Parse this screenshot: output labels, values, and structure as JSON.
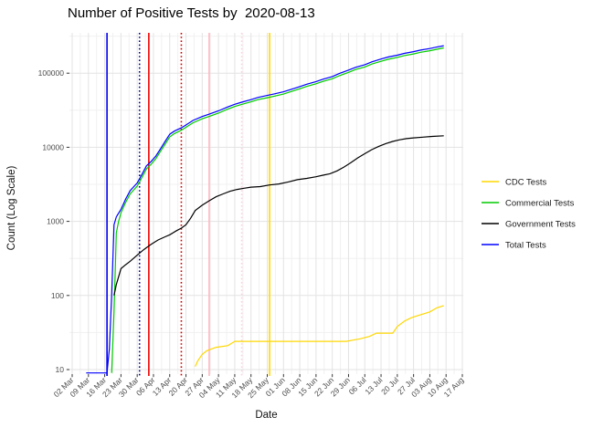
{
  "chart_data": {
    "type": "line",
    "title": "Number of Positive Tests by  2020-08-13",
    "xlabel": "Date",
    "ylabel": "Count (Log Scale)",
    "y_scale": "log10",
    "grid": "on",
    "legend_position": "right",
    "ylim": [
      9,
      350000
    ],
    "xlim": [
      "2020-03-01",
      "2020-08-18"
    ],
    "y_ticks": [
      {
        "value": 10,
        "label": "10"
      },
      {
        "value": 100,
        "label": "100"
      },
      {
        "value": 1000,
        "label": "1000"
      },
      {
        "value": 10000,
        "label": "10000"
      },
      {
        "value": 100000,
        "label": "100000"
      }
    ],
    "x_ticks": [
      {
        "date": "2020-03-02",
        "label": "02 Mar"
      },
      {
        "date": "2020-03-09",
        "label": "09 Mar"
      },
      {
        "date": "2020-03-16",
        "label": "16 Mar"
      },
      {
        "date": "2020-03-23",
        "label": "23 Mar"
      },
      {
        "date": "2020-03-30",
        "label": "30 Mar"
      },
      {
        "date": "2020-04-06",
        "label": "06 Apr"
      },
      {
        "date": "2020-04-13",
        "label": "13 Apr"
      },
      {
        "date": "2020-04-20",
        "label": "20 Apr"
      },
      {
        "date": "2020-04-27",
        "label": "27 Apr"
      },
      {
        "date": "2020-05-04",
        "label": "04 May"
      },
      {
        "date": "2020-05-11",
        "label": "11 May"
      },
      {
        "date": "2020-05-18",
        "label": "18 May"
      },
      {
        "date": "2020-05-25",
        "label": "25 May"
      },
      {
        "date": "2020-06-01",
        "label": "01 Jun"
      },
      {
        "date": "2020-06-08",
        "label": "08 Jun"
      },
      {
        "date": "2020-06-15",
        "label": "15 Jun"
      },
      {
        "date": "2020-06-22",
        "label": "22 Jun"
      },
      {
        "date": "2020-06-29",
        "label": "29 Jun"
      },
      {
        "date": "2020-07-06",
        "label": "06 Jul"
      },
      {
        "date": "2020-07-13",
        "label": "13 Jul"
      },
      {
        "date": "2020-07-20",
        "label": "20 Jul"
      },
      {
        "date": "2020-07-27",
        "label": "27 Jul"
      },
      {
        "date": "2020-08-03",
        "label": "03 Aug"
      },
      {
        "date": "2020-08-10",
        "label": "10 Aug"
      },
      {
        "date": "2020-08-17",
        "label": "17 Aug"
      }
    ],
    "event_vlines": [
      {
        "date": "2020-03-17",
        "color": "#0000EE",
        "style": "solid"
      },
      {
        "date": "2020-03-31",
        "color": "#00008B",
        "style": "dotted"
      },
      {
        "date": "2020-04-04",
        "color": "#EE0000",
        "style": "solid"
      },
      {
        "date": "2020-04-18",
        "color": "#CC0000",
        "style": "dotted"
      },
      {
        "date": "2020-04-30",
        "color": "#FFB6C1",
        "style": "solid"
      },
      {
        "date": "2020-05-14",
        "color": "#FFD0DA",
        "style": "dotted"
      },
      {
        "date": "2020-05-26",
        "color": "#FFD700",
        "style": "solid"
      }
    ],
    "series": [
      {
        "name": "CDC Tests",
        "color": "#FFD700",
        "points": [
          [
            "2020-04-24",
            11
          ],
          [
            "2020-04-25",
            13
          ],
          [
            "2020-04-27",
            16
          ],
          [
            "2020-04-29",
            18
          ],
          [
            "2020-05-01",
            19
          ],
          [
            "2020-05-03",
            20
          ],
          [
            "2020-05-08",
            21
          ],
          [
            "2020-05-11",
            24
          ],
          [
            "2020-06-28",
            24
          ],
          [
            "2020-07-01",
            25
          ],
          [
            "2020-07-04",
            26
          ],
          [
            "2020-07-08",
            28
          ],
          [
            "2020-07-11",
            31
          ],
          [
            "2020-07-18",
            31
          ],
          [
            "2020-07-20",
            38
          ],
          [
            "2020-07-23",
            45
          ],
          [
            "2020-07-26",
            50
          ],
          [
            "2020-07-30",
            55
          ],
          [
            "2020-08-03",
            60
          ],
          [
            "2020-08-06",
            68
          ],
          [
            "2020-08-09",
            73
          ]
        ]
      },
      {
        "name": "Commercial Tests",
        "color": "#00CC00",
        "points": [
          [
            "2020-03-19",
            9
          ],
          [
            "2020-03-20",
            60
          ],
          [
            "2020-03-21",
            700
          ],
          [
            "2020-03-22",
            1000
          ],
          [
            "2020-03-23",
            1300
          ],
          [
            "2020-03-25",
            1800
          ],
          [
            "2020-03-27",
            2350
          ],
          [
            "2020-03-30",
            3000
          ],
          [
            "2020-04-01",
            3900
          ],
          [
            "2020-04-03",
            5100
          ],
          [
            "2020-04-05",
            5900
          ],
          [
            "2020-04-07",
            7000
          ],
          [
            "2020-04-09",
            8800
          ],
          [
            "2020-04-11",
            11000
          ],
          [
            "2020-04-13",
            13800
          ],
          [
            "2020-04-15",
            15300
          ],
          [
            "2020-04-18",
            17000
          ],
          [
            "2020-04-20",
            18600
          ],
          [
            "2020-04-23",
            21400
          ],
          [
            "2020-04-27",
            24200
          ],
          [
            "2020-04-30",
            26100
          ],
          [
            "2020-05-04",
            28900
          ],
          [
            "2020-05-08",
            32700
          ],
          [
            "2020-05-11",
            35500
          ],
          [
            "2020-05-14",
            37900
          ],
          [
            "2020-05-18",
            41100
          ],
          [
            "2020-05-21",
            43900
          ],
          [
            "2020-05-25",
            46700
          ],
          [
            "2020-05-28",
            49000
          ],
          [
            "2020-06-01",
            52300
          ],
          [
            "2020-06-04",
            56000
          ],
          [
            "2020-06-08",
            61600
          ],
          [
            "2020-06-11",
            66300
          ],
          [
            "2020-06-15",
            71900
          ],
          [
            "2020-06-18",
            77500
          ],
          [
            "2020-06-22",
            84000
          ],
          [
            "2020-06-25",
            92400
          ],
          [
            "2020-06-29",
            102700
          ],
          [
            "2020-07-02",
            112000
          ],
          [
            "2020-07-06",
            121400
          ],
          [
            "2020-07-09",
            132600
          ],
          [
            "2020-07-13",
            144700
          ],
          [
            "2020-07-16",
            154100
          ],
          [
            "2020-07-20",
            163400
          ],
          [
            "2020-07-23",
            172800
          ],
          [
            "2020-07-27",
            182100
          ],
          [
            "2020-07-30",
            191500
          ],
          [
            "2020-08-03",
            200800
          ],
          [
            "2020-08-06",
            210100
          ],
          [
            "2020-08-09",
            219400
          ]
        ]
      },
      {
        "name": "Government Tests",
        "color": "#000000",
        "points": [
          [
            "2020-03-20",
            100
          ],
          [
            "2020-03-21",
            140
          ],
          [
            "2020-03-23",
            230
          ],
          [
            "2020-03-25",
            260
          ],
          [
            "2020-03-27",
            290
          ],
          [
            "2020-03-30",
            350
          ],
          [
            "2020-04-02",
            420
          ],
          [
            "2020-04-05",
            490
          ],
          [
            "2020-04-08",
            560
          ],
          [
            "2020-04-11",
            620
          ],
          [
            "2020-04-13",
            660
          ],
          [
            "2020-04-16",
            750
          ],
          [
            "2020-04-18",
            810
          ],
          [
            "2020-04-20",
            900
          ],
          [
            "2020-04-22",
            1100
          ],
          [
            "2020-04-24",
            1400
          ],
          [
            "2020-04-27",
            1650
          ],
          [
            "2020-04-30",
            1900
          ],
          [
            "2020-05-03",
            2150
          ],
          [
            "2020-05-06",
            2350
          ],
          [
            "2020-05-09",
            2550
          ],
          [
            "2020-05-12",
            2700
          ],
          [
            "2020-05-15",
            2800
          ],
          [
            "2020-05-18",
            2900
          ],
          [
            "2020-05-22",
            2950
          ],
          [
            "2020-05-26",
            3100
          ],
          [
            "2020-05-30",
            3200
          ],
          [
            "2020-06-03",
            3400
          ],
          [
            "2020-06-07",
            3650
          ],
          [
            "2020-06-11",
            3800
          ],
          [
            "2020-06-15",
            4000
          ],
          [
            "2020-06-18",
            4200
          ],
          [
            "2020-06-21",
            4400
          ],
          [
            "2020-06-24",
            4800
          ],
          [
            "2020-06-27",
            5400
          ],
          [
            "2020-06-30",
            6200
          ],
          [
            "2020-07-03",
            7200
          ],
          [
            "2020-07-06",
            8200
          ],
          [
            "2020-07-09",
            9300
          ],
          [
            "2020-07-12",
            10300
          ],
          [
            "2020-07-15",
            11200
          ],
          [
            "2020-07-18",
            12000
          ],
          [
            "2020-07-21",
            12600
          ],
          [
            "2020-07-24",
            13100
          ],
          [
            "2020-07-27",
            13400
          ],
          [
            "2020-07-31",
            13700
          ],
          [
            "2020-08-04",
            14000
          ],
          [
            "2020-08-09",
            14300
          ]
        ]
      },
      {
        "name": "Total Tests",
        "color": "#0000FF",
        "points": [
          [
            "2020-03-08",
            9
          ],
          [
            "2020-03-17",
            9
          ],
          [
            "2020-03-18",
            19
          ],
          [
            "2020-03-19",
            100
          ],
          [
            "2020-03-20",
            900
          ],
          [
            "2020-03-21",
            1150
          ],
          [
            "2020-03-23",
            1450
          ],
          [
            "2020-03-25",
            2000
          ],
          [
            "2020-03-27",
            2600
          ],
          [
            "2020-03-30",
            3300
          ],
          [
            "2020-04-01",
            4300
          ],
          [
            "2020-04-03",
            5600
          ],
          [
            "2020-04-05",
            6450
          ],
          [
            "2020-04-07",
            7600
          ],
          [
            "2020-04-09",
            9500
          ],
          [
            "2020-04-11",
            12000
          ],
          [
            "2020-04-13",
            15000
          ],
          [
            "2020-04-15",
            16500
          ],
          [
            "2020-04-18",
            18300
          ],
          [
            "2020-04-20",
            20000
          ],
          [
            "2020-04-23",
            23000
          ],
          [
            "2020-04-27",
            26000
          ],
          [
            "2020-04-30",
            28000
          ],
          [
            "2020-05-04",
            31000
          ],
          [
            "2020-05-08",
            35000
          ],
          [
            "2020-05-11",
            38000
          ],
          [
            "2020-05-14",
            40600
          ],
          [
            "2020-05-18",
            44000
          ],
          [
            "2020-05-21",
            47000
          ],
          [
            "2020-05-25",
            50000
          ],
          [
            "2020-05-28",
            52500
          ],
          [
            "2020-06-01",
            56000
          ],
          [
            "2020-06-04",
            60000
          ],
          [
            "2020-06-08",
            66000
          ],
          [
            "2020-06-11",
            71000
          ],
          [
            "2020-06-15",
            77000
          ],
          [
            "2020-06-18",
            83000
          ],
          [
            "2020-06-22",
            90000
          ],
          [
            "2020-06-25",
            99000
          ],
          [
            "2020-06-29",
            110000
          ],
          [
            "2020-07-02",
            120000
          ],
          [
            "2020-07-06",
            130000
          ],
          [
            "2020-07-09",
            142000
          ],
          [
            "2020-07-13",
            155000
          ],
          [
            "2020-07-16",
            165000
          ],
          [
            "2020-07-20",
            175000
          ],
          [
            "2020-07-23",
            185000
          ],
          [
            "2020-07-27",
            195000
          ],
          [
            "2020-07-30",
            205000
          ],
          [
            "2020-08-03",
            215000
          ],
          [
            "2020-08-06",
            225000
          ],
          [
            "2020-08-09",
            235000
          ]
        ]
      }
    ],
    "colors": {
      "background": "#FFFFFF",
      "grid_major": "#E3E3E3",
      "grid_minor": "#F0F0F0",
      "tick_text": "#4D4D4D",
      "text": "#111111"
    }
  }
}
